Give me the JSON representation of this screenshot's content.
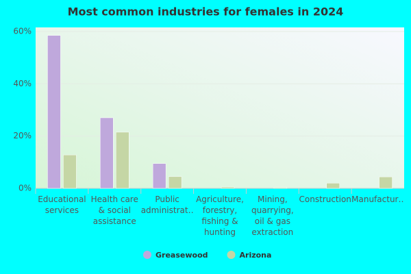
{
  "chart_data": {
    "type": "bar",
    "title": "Most common industries for females in 2024",
    "categories": [
      "Educational services",
      "Health care & social assistance",
      "Public administrat…",
      "Agriculture, forestry, fishing & hunting",
      "Mining, quarrying, oil & gas extraction",
      "Construction",
      "Manufactur…"
    ],
    "series": [
      {
        "name": "Greasewood",
        "color": "#bfa8dc",
        "values": [
          58.5,
          27,
          9.5,
          0,
          0,
          0,
          0
        ]
      },
      {
        "name": "Arizona",
        "color": "#c5d6a5",
        "values": [
          12.8,
          21.5,
          4.5,
          0.5,
          0.3,
          2,
          4.4
        ]
      }
    ],
    "ylim": [
      0,
      60
    ],
    "yticks": [
      {
        "value": 0,
        "label": "0%"
      },
      {
        "value": 20,
        "label": "20%"
      },
      {
        "value": 40,
        "label": "40%"
      },
      {
        "value": 60,
        "label": "60%"
      }
    ],
    "grid": true
  }
}
